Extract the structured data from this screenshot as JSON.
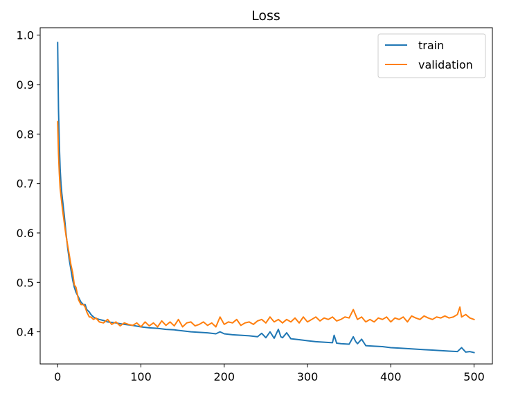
{
  "chart_data": {
    "type": "line",
    "title": "Loss",
    "xlabel": "",
    "ylabel": "",
    "xlim": [
      -21,
      522
    ],
    "ylim": [
      0.335,
      1.015
    ],
    "x_ticks": [
      0,
      100,
      200,
      300,
      400,
      500
    ],
    "x_tick_labels": [
      "0",
      "100",
      "200",
      "300",
      "400",
      "500"
    ],
    "y_ticks": [
      0.4,
      0.5,
      0.6,
      0.7,
      0.8,
      0.9,
      1.0
    ],
    "y_tick_labels": [
      "0.4",
      "0.5",
      "0.6",
      "0.7",
      "0.8",
      "0.9",
      "1.0"
    ],
    "grid": false,
    "legend_position": "top-right",
    "series": [
      {
        "name": "train",
        "color": "#1f77b4",
        "x": [
          0,
          1,
          2,
          3,
          4,
          5,
          6,
          8,
          10,
          12,
          14,
          16,
          18,
          20,
          22,
          25,
          28,
          31,
          33,
          35,
          38,
          40,
          43,
          46,
          50,
          55,
          60,
          70,
          80,
          90,
          100,
          110,
          120,
          130,
          140,
          150,
          160,
          170,
          180,
          190,
          195,
          200,
          210,
          220,
          230,
          240,
          245,
          250,
          255,
          260,
          265,
          268,
          270,
          275,
          280,
          290,
          300,
          310,
          320,
          330,
          332,
          335,
          340,
          350,
          355,
          358,
          360,
          365,
          370,
          380,
          390,
          400,
          410,
          420,
          430,
          440,
          450,
          460,
          470,
          480,
          485,
          490,
          495,
          500
        ],
        "y": [
          0.985,
          0.85,
          0.78,
          0.73,
          0.7,
          0.68,
          0.665,
          0.635,
          0.6,
          0.57,
          0.545,
          0.525,
          0.505,
          0.49,
          0.48,
          0.47,
          0.46,
          0.455,
          0.455,
          0.445,
          0.44,
          0.435,
          0.43,
          0.427,
          0.425,
          0.423,
          0.42,
          0.418,
          0.415,
          0.413,
          0.41,
          0.408,
          0.407,
          0.405,
          0.404,
          0.402,
          0.4,
          0.399,
          0.398,
          0.396,
          0.4,
          0.396,
          0.394,
          0.393,
          0.392,
          0.39,
          0.397,
          0.388,
          0.4,
          0.387,
          0.405,
          0.39,
          0.388,
          0.398,
          0.386,
          0.384,
          0.382,
          0.38,
          0.379,
          0.378,
          0.393,
          0.377,
          0.376,
          0.375,
          0.39,
          0.38,
          0.376,
          0.385,
          0.372,
          0.371,
          0.37,
          0.368,
          0.367,
          0.366,
          0.365,
          0.364,
          0.363,
          0.362,
          0.361,
          0.36,
          0.368,
          0.359,
          0.36,
          0.358
        ]
      },
      {
        "name": "validation",
        "color": "#ff7f0e",
        "x": [
          0,
          1,
          2,
          3,
          4,
          5,
          6,
          8,
          10,
          12,
          14,
          16,
          18,
          20,
          22,
          25,
          28,
          31,
          33,
          35,
          38,
          40,
          43,
          46,
          50,
          55,
          60,
          65,
          70,
          75,
          80,
          85,
          90,
          95,
          100,
          105,
          110,
          115,
          120,
          125,
          130,
          135,
          140,
          145,
          150,
          155,
          160,
          165,
          170,
          175,
          180,
          185,
          190,
          195,
          200,
          205,
          210,
          215,
          220,
          225,
          230,
          235,
          240,
          245,
          250,
          255,
          260,
          265,
          270,
          275,
          280,
          285,
          290,
          295,
          300,
          305,
          310,
          315,
          320,
          325,
          330,
          335,
          340,
          345,
          350,
          355,
          360,
          365,
          370,
          375,
          380,
          385,
          390,
          395,
          400,
          405,
          410,
          415,
          420,
          425,
          430,
          435,
          440,
          445,
          450,
          455,
          460,
          465,
          470,
          475,
          480,
          483,
          485,
          490,
          495,
          500
        ],
        "y": [
          0.825,
          0.76,
          0.72,
          0.69,
          0.675,
          0.66,
          0.645,
          0.62,
          0.595,
          0.575,
          0.555,
          0.535,
          0.52,
          0.495,
          0.49,
          0.465,
          0.455,
          0.455,
          0.45,
          0.44,
          0.43,
          0.43,
          0.425,
          0.428,
          0.42,
          0.418,
          0.425,
          0.415,
          0.42,
          0.412,
          0.418,
          0.415,
          0.413,
          0.418,
          0.41,
          0.42,
          0.412,
          0.418,
          0.41,
          0.422,
          0.413,
          0.42,
          0.412,
          0.425,
          0.41,
          0.418,
          0.42,
          0.412,
          0.415,
          0.42,
          0.413,
          0.418,
          0.41,
          0.43,
          0.415,
          0.42,
          0.418,
          0.425,
          0.413,
          0.418,
          0.42,
          0.415,
          0.422,
          0.425,
          0.418,
          0.43,
          0.42,
          0.425,
          0.418,
          0.425,
          0.42,
          0.428,
          0.418,
          0.43,
          0.42,
          0.425,
          0.43,
          0.422,
          0.428,
          0.425,
          0.43,
          0.422,
          0.425,
          0.43,
          0.428,
          0.445,
          0.425,
          0.43,
          0.42,
          0.425,
          0.42,
          0.428,
          0.425,
          0.43,
          0.42,
          0.428,
          0.425,
          0.43,
          0.42,
          0.432,
          0.428,
          0.425,
          0.432,
          0.428,
          0.425,
          0.43,
          0.428,
          0.432,
          0.428,
          0.43,
          0.435,
          0.45,
          0.43,
          0.435,
          0.428,
          0.425
        ]
      }
    ]
  }
}
